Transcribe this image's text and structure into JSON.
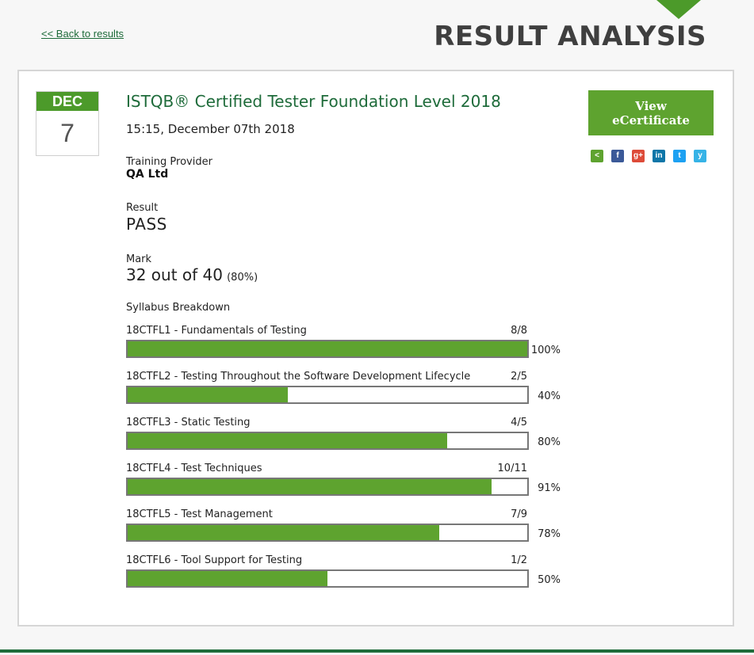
{
  "nav": {
    "back_link": "<< Back to results"
  },
  "header": {
    "title": "RESULT ANALYSIS"
  },
  "date": {
    "month": "DEC",
    "day": "7"
  },
  "exam": {
    "title": "ISTQB® Certified Tester Foundation Level 2018",
    "datetime": "15:15, December 07th 2018",
    "provider_label": "Training Provider",
    "provider": "QA Ltd",
    "result_label": "Result",
    "result": "PASS",
    "mark_label": "Mark",
    "mark": "32 out of 40",
    "mark_pct": "(80%)",
    "syllabus_heading": "Syllabus Breakdown"
  },
  "syllabus": [
    {
      "name": "18CTFL1 - Fundamentals of Testing",
      "score": "8/8",
      "pct": "100%",
      "fraction": 1.0
    },
    {
      "name": "18CTFL2 - Testing Throughout the Software Development Lifecycle",
      "score": "2/5",
      "pct": "40%",
      "fraction": 0.4
    },
    {
      "name": "18CTFL3 - Static Testing",
      "score": "4/5",
      "pct": "80%",
      "fraction": 0.8
    },
    {
      "name": "18CTFL4 - Test Techniques",
      "score": "10/11",
      "pct": "91%",
      "fraction": 0.91
    },
    {
      "name": "18CTFL5 - Test Management",
      "score": "7/9",
      "pct": "78%",
      "fraction": 0.78
    },
    {
      "name": "18CTFL6 - Tool Support for Testing",
      "score": "1/2",
      "pct": "50%",
      "fraction": 0.5
    }
  ],
  "certificate": {
    "line1": "View",
    "line2": "eCertificate"
  },
  "share": [
    {
      "icon": "share-icon",
      "glyph": "<",
      "color": "#5ea32f"
    },
    {
      "icon": "facebook-icon",
      "glyph": "f",
      "color": "#3b5998"
    },
    {
      "icon": "google-plus-icon",
      "glyph": "g+",
      "color": "#dd4b39"
    },
    {
      "icon": "linkedin-icon",
      "glyph": "in",
      "color": "#0e76a8"
    },
    {
      "icon": "twitter-icon",
      "glyph": "t",
      "color": "#1da1f2"
    },
    {
      "icon": "yammer-icon",
      "glyph": "y",
      "color": "#36b3e6"
    }
  ],
  "colors": {
    "brand_green": "#1e6b3a",
    "bar_green": "#5ea32f",
    "accent_green": "#4c9a2a"
  }
}
